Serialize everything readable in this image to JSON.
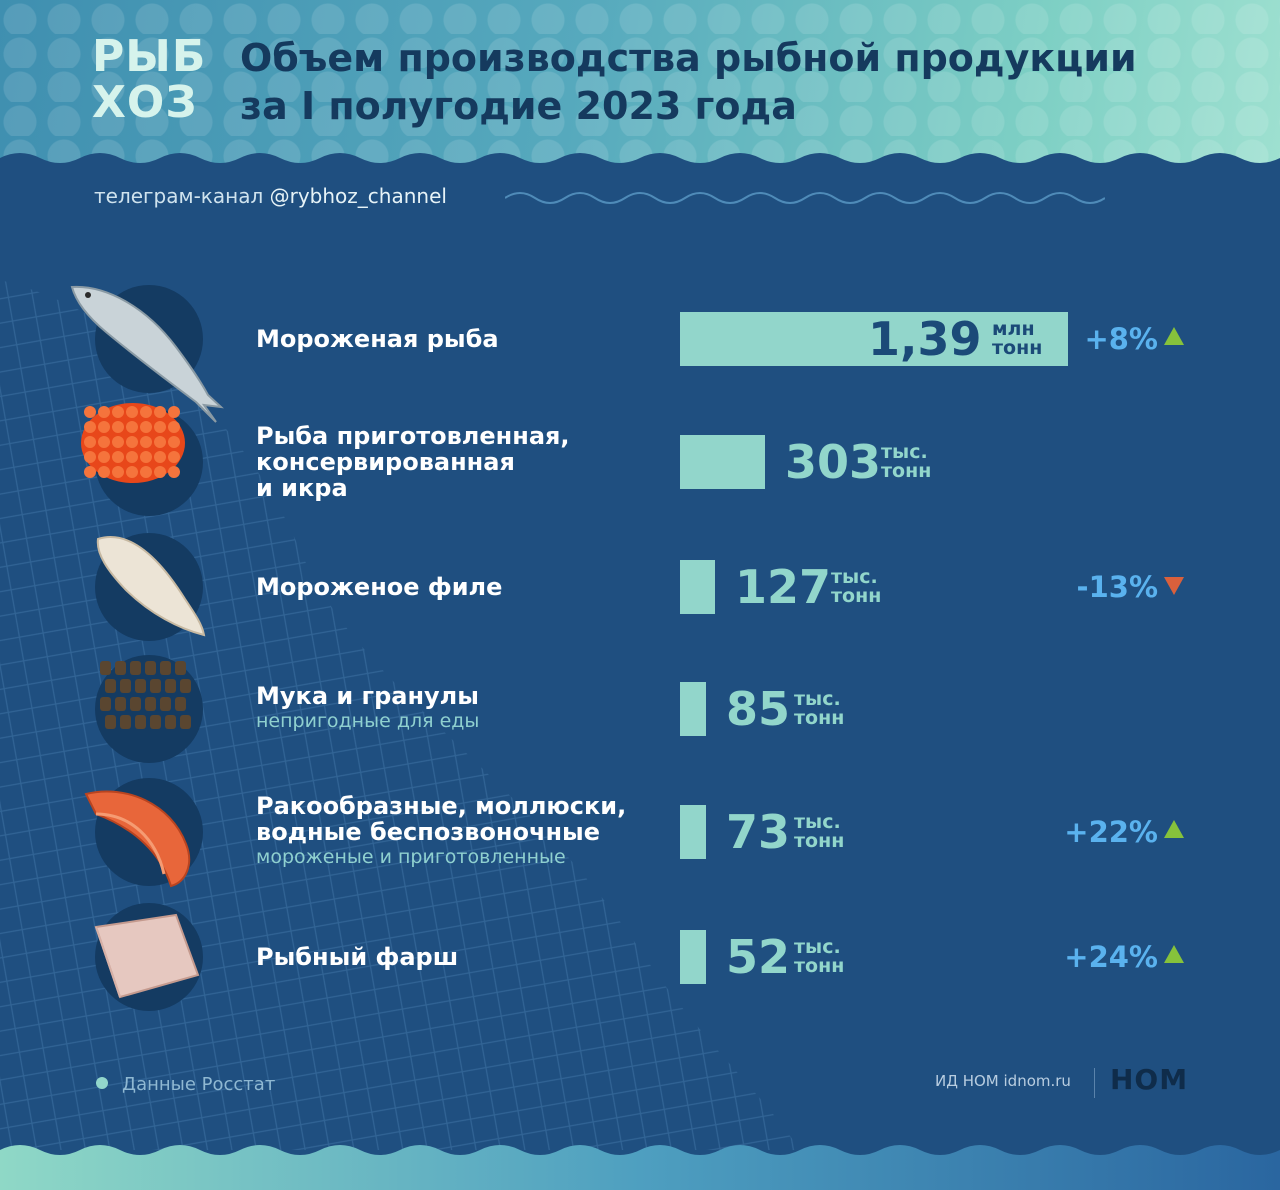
{
  "header": {
    "logo_line1": "РЫБ",
    "logo_line2": "ХОЗ",
    "title_line1": "Объем производства рыбной продукции",
    "title_line2": "за I полугодие 2023 года",
    "channel_prefix": "телеграм-канал",
    "channel_handle": "@rybhoz_channel"
  },
  "chart_data": {
    "type": "bar",
    "title": "Объем производства рыбной продукции за I полугодие 2023 года",
    "categories": [
      "Мороженая рыба",
      "Рыба приготовленная, консервированная и икра",
      "Мороженое филе",
      "Мука и гранулы",
      "Ракообразные, моллюски, водные беспозвоночные",
      "Рыбный фарш"
    ],
    "values_thousand_tonnes": [
      1390,
      303,
      127,
      85,
      73,
      52
    ],
    "items": [
      {
        "label_lines": [
          "Мороженая рыба"
        ],
        "sub": "",
        "value_text": "1,39",
        "unit1": "млн",
        "unit2": "тонн",
        "change": "+8%",
        "trend": "up",
        "icon": "fish-icon"
      },
      {
        "label_lines": [
          "Рыба приготовленная,",
          "консервированная",
          "и икра"
        ],
        "sub": "",
        "value_text": "303",
        "unit1": "тыс.",
        "unit2": "тонн",
        "change": "",
        "trend": "",
        "icon": "caviar-icon"
      },
      {
        "label_lines": [
          "Мороженое филе"
        ],
        "sub": "",
        "value_text": "127",
        "unit1": "тыс.",
        "unit2": "тонн",
        "change": "-13%",
        "trend": "down",
        "icon": "fillet-icon"
      },
      {
        "label_lines": [
          "Мука и гранулы"
        ],
        "sub": "непригодные для еды",
        "value_text": "85",
        "unit1": "тыс.",
        "unit2": "тонн",
        "change": "",
        "trend": "",
        "icon": "pellets-icon"
      },
      {
        "label_lines": [
          "Ракообразные, моллюски,",
          "водные беспозвоночные"
        ],
        "sub": "мороженые и приготовленные",
        "value_text": "73",
        "unit1": "тыс.",
        "unit2": "тонн",
        "change": "+22%",
        "trend": "up",
        "icon": "shrimp-icon"
      },
      {
        "label_lines": [
          "Рыбный фарш"
        ],
        "sub": "",
        "value_text": "52",
        "unit1": "тыс.",
        "unit2": "тонн",
        "change": "+24%",
        "trend": "up",
        "icon": "mince-icon"
      }
    ],
    "colors": {
      "bar": "#92d6cb",
      "up": "#86c23b",
      "down": "#d9603c",
      "change_text": "#5ab2ee",
      "background": "#1f4f80"
    }
  },
  "footer": {
    "source": "Данные Росстат",
    "publisher": "ИД НОМ idnom.ru",
    "publisher_logo": "НОМ"
  }
}
